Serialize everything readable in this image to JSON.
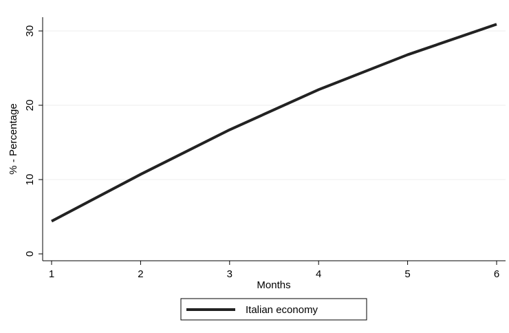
{
  "chart_data": {
    "type": "line",
    "x": [
      1,
      2,
      3,
      4,
      5,
      6
    ],
    "series": [
      {
        "name": "Italian economy",
        "values": [
          4.4,
          10.7,
          16.7,
          22.1,
          26.8,
          30.9
        ],
        "color": "#222222"
      }
    ],
    "xlabel": "Months",
    "ylabel": "% - Percentage",
    "xticks": [
      1,
      2,
      3,
      4,
      5,
      6
    ],
    "yticks": [
      0,
      10,
      20,
      30
    ],
    "xlim": [
      1,
      6
    ],
    "ylim": [
      0,
      30
    ],
    "grid": true,
    "legend_position": "bottom"
  }
}
